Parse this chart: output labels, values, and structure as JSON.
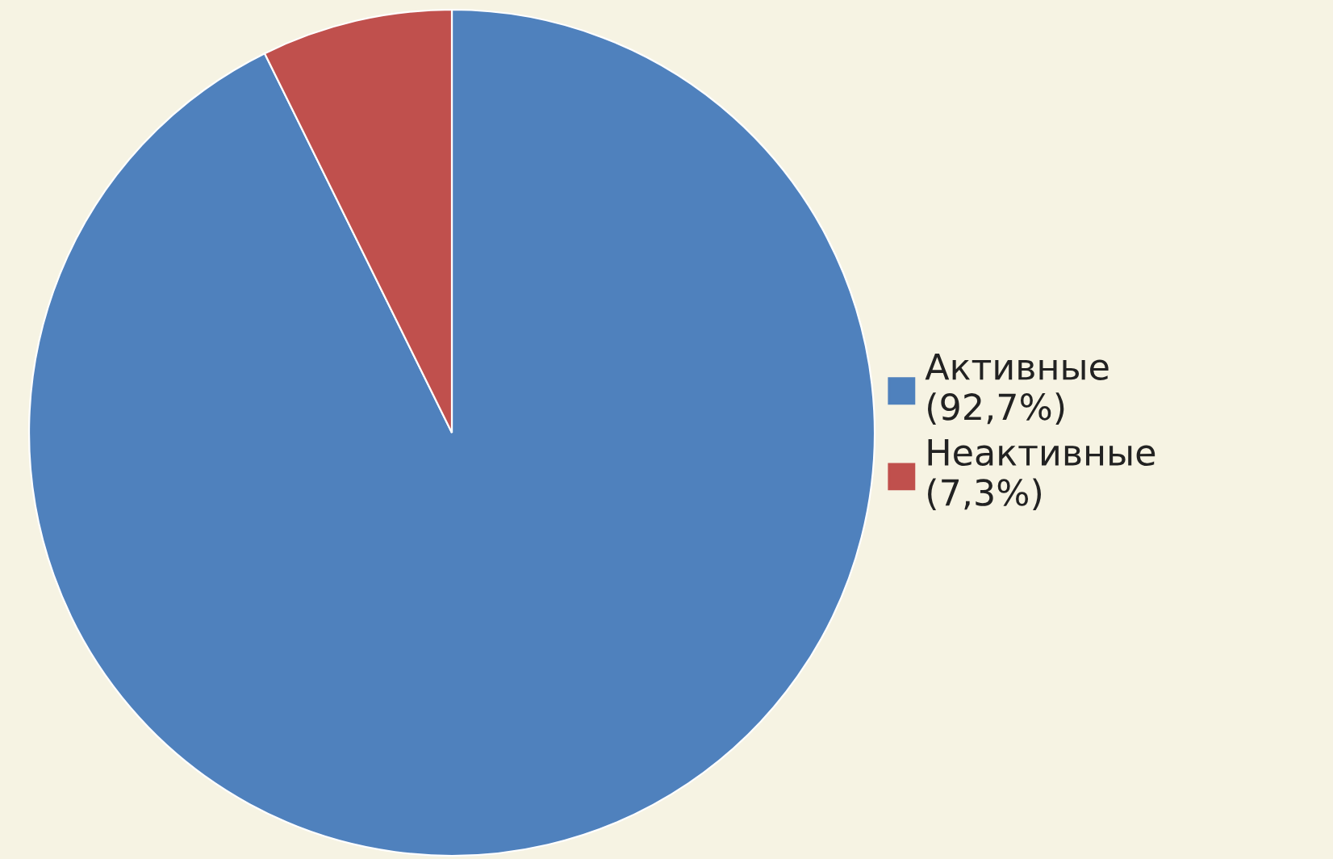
{
  "chart_data": {
    "type": "pie",
    "categories": [
      "Активные\n(92,7%)",
      "Неактивные\n(7,3%)"
    ],
    "values": [
      92.7,
      7.3
    ],
    "colors": [
      "#4f81bd",
      "#c0504d"
    ],
    "legend": "right"
  }
}
